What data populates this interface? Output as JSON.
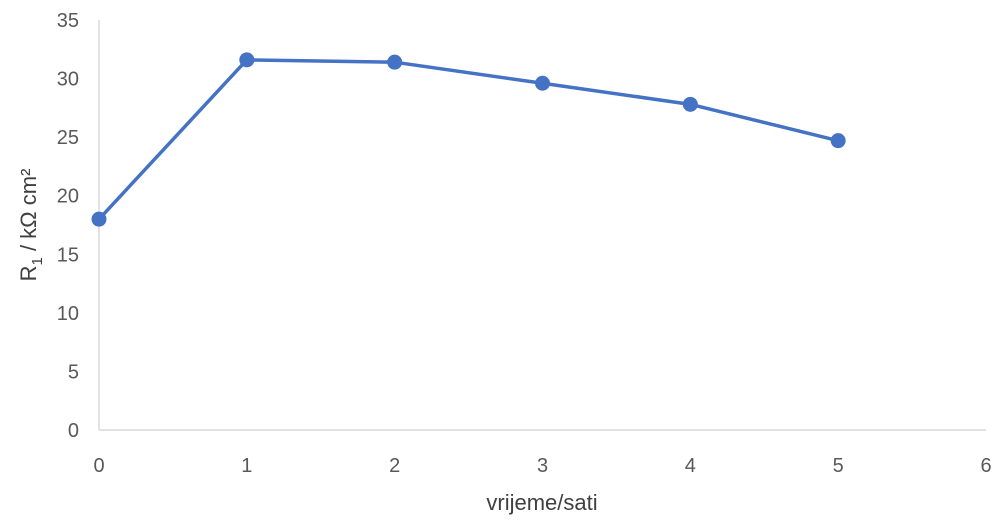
{
  "chart_data": {
    "type": "scatter",
    "x": [
      0,
      1,
      2,
      3,
      4,
      5
    ],
    "y": [
      18.0,
      31.6,
      31.4,
      29.6,
      27.8,
      24.7
    ],
    "xlabel": "vrijeme/sati",
    "ylabel": {
      "main": "R",
      "sub": "1",
      "rest": " / kΩ cm²"
    },
    "xlim": [
      0,
      6
    ],
    "ylim": [
      0,
      35
    ],
    "xticks": [
      "0",
      "1",
      "2",
      "3",
      "4",
      "5",
      "6"
    ],
    "yticks": [
      "0",
      "5",
      "10",
      "15",
      "20",
      "25",
      "30",
      "35"
    ],
    "grid": false,
    "line": true,
    "markers": true,
    "color": "#4472C4"
  }
}
